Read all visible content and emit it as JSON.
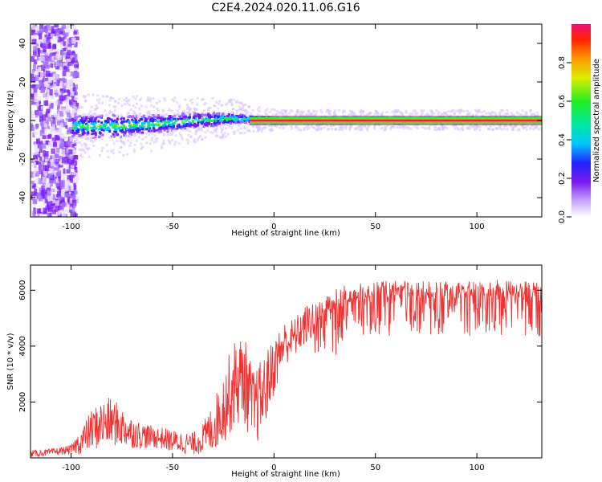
{
  "title": "C2E4.2024.020.11.06.G16",
  "chart_data": [
    {
      "type": "heatmap",
      "xlabel": "Height of straight line (km)",
      "ylabel": "Frequency (Hz)",
      "xlim": [
        -120,
        132
      ],
      "ylim": [
        -50,
        50
      ],
      "xticks": [
        -100,
        -50,
        0,
        50,
        100
      ],
      "yticks": [
        -40,
        -20,
        0,
        20,
        40
      ],
      "colorbar": {
        "label": "Normalized spectral amplitude",
        "range": [
          0,
          1
        ],
        "ticks": [
          0.0,
          0.2,
          0.4,
          0.6,
          0.8
        ]
      },
      "ridge": {
        "description_points_x": [
          -120,
          -100,
          -80,
          -60,
          -40,
          -20,
          -10,
          0,
          20,
          50,
          100,
          132
        ],
        "center_freq_hz": [
          0,
          -3,
          -3,
          -2,
          0,
          1,
          0.5,
          0,
          0,
          0,
          0,
          0
        ],
        "spread_hz": [
          50,
          6,
          6,
          5,
          4,
          3,
          1.5,
          1.2,
          1,
          1,
          1,
          1
        ]
      }
    },
    {
      "type": "line",
      "xlabel": "Height of straight line (km)",
      "ylabel": "SNR (10 * v/v)",
      "xlim": [
        -120,
        132
      ],
      "ylim": [
        0,
        6900
      ],
      "xticks": [
        -100,
        -50,
        0,
        50,
        100
      ],
      "yticks": [
        2000,
        4000,
        6000
      ],
      "series": [
        {
          "color": "#ee3333",
          "x": [
            -120,
            -110,
            -100,
            -95,
            -90,
            -85,
            -80,
            -75,
            -70,
            -65,
            -60,
            -55,
            -50,
            -45,
            -40,
            -35,
            -30,
            -25,
            -20,
            -15,
            -10,
            -5,
            0,
            5,
            10,
            15,
            20,
            25,
            30,
            35,
            40,
            50,
            60,
            70,
            80,
            90,
            100,
            110,
            120,
            132
          ],
          "y_mean": [
            150,
            200,
            300,
            600,
            1000,
            1200,
            1300,
            1100,
            900,
            800,
            750,
            700,
            600,
            550,
            500,
            700,
            1100,
            1800,
            2600,
            2900,
            1700,
            2300,
            3300,
            4100,
            4300,
            4700,
            5000,
            5300,
            5500,
            5700,
            5800,
            5900,
            5900,
            5900,
            5850,
            5900,
            5900,
            5950,
            5900,
            5850
          ],
          "y_spread": [
            150,
            150,
            200,
            600,
            900,
            1100,
            1100,
            900,
            700,
            600,
            500,
            500,
            500,
            500,
            500,
            700,
            1100,
            1600,
            2000,
            2000,
            1800,
            1700,
            1300,
            1000,
            900,
            900,
            900,
            900,
            900,
            800,
            700,
            700,
            700,
            700,
            700,
            700,
            700,
            700,
            700,
            700
          ]
        }
      ]
    }
  ]
}
